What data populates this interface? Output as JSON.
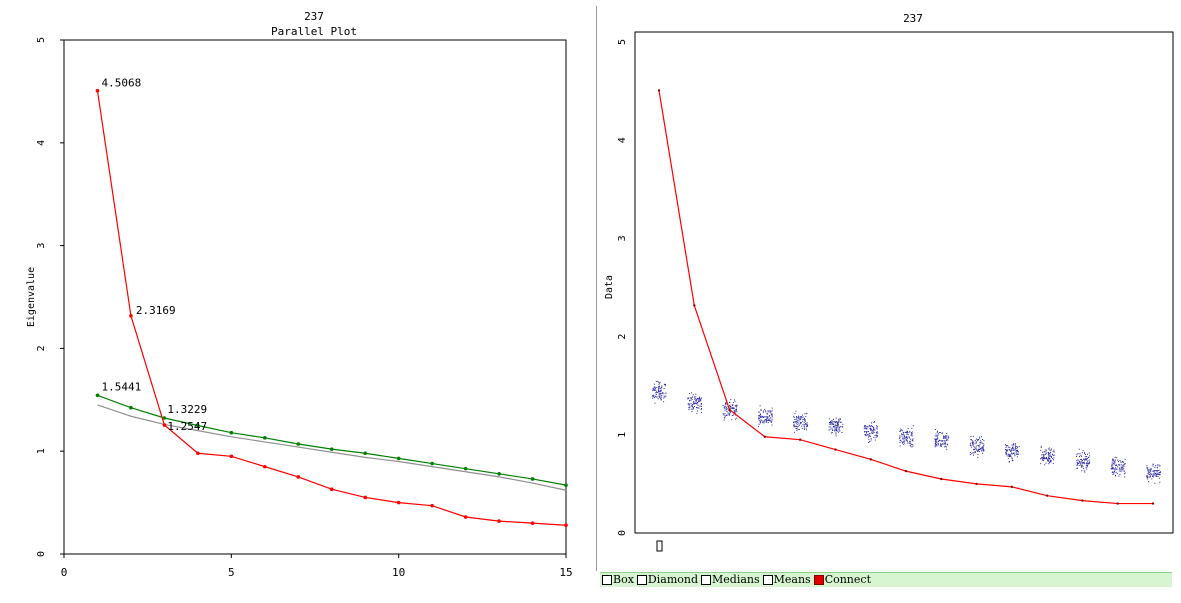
{
  "chart_data": [
    {
      "type": "line",
      "title": "237",
      "subtitle": "Parallel Plot",
      "xlabel": "",
      "ylabel": "Eigenvalue",
      "xlim": [
        0,
        15
      ],
      "ylim": [
        0,
        5
      ],
      "xticks": [
        0,
        5,
        10,
        15
      ],
      "yticks": [
        0,
        1,
        2,
        3,
        4,
        5
      ],
      "grid": false,
      "x": [
        1,
        2,
        3,
        4,
        5,
        6,
        7,
        8,
        9,
        10,
        11,
        12,
        13,
        14,
        15
      ],
      "series": [
        {
          "color": "#ff0000",
          "markers": true,
          "values": [
            4.5068,
            2.3169,
            1.2547,
            0.98,
            0.95,
            0.85,
            0.75,
            0.63,
            0.55,
            0.5,
            0.47,
            0.36,
            0.32,
            0.3,
            0.28
          ]
        },
        {
          "color": "#008000",
          "markers": true,
          "values": [
            1.5441,
            1.4229,
            1.3229,
            1.25,
            1.18,
            1.13,
            1.07,
            1.02,
            0.98,
            0.93,
            0.88,
            0.83,
            0.78,
            0.73,
            0.67
          ]
        },
        {
          "color": "#909090",
          "markers": false,
          "values": [
            1.45,
            1.34,
            1.26,
            1.2,
            1.14,
            1.09,
            1.04,
            0.99,
            0.94,
            0.9,
            0.85,
            0.8,
            0.75,
            0.69,
            0.62
          ]
        }
      ],
      "annotations": [
        {
          "x": 1,
          "y": 4.5068,
          "text": "4.5068"
        },
        {
          "x": 2,
          "y": 2.3169,
          "text": "2.3169"
        },
        {
          "x": 1,
          "y": 1.5441,
          "text": "1.5441"
        },
        {
          "x": 3,
          "y": 1.3229,
          "text": "1.3229"
        },
        {
          "x": 3,
          "y": 1.2547,
          "text": "1.2547"
        }
      ]
    },
    {
      "type": "scatter",
      "title": "237",
      "ylabel": "Data",
      "ylim": [
        0,
        5
      ],
      "yticks": [
        0,
        1,
        2,
        3,
        4,
        5
      ],
      "categories_count": 15,
      "scatter_centers": [
        1.45,
        1.34,
        1.26,
        1.2,
        1.14,
        1.09,
        1.04,
        0.98,
        0.94,
        0.89,
        0.84,
        0.79,
        0.74,
        0.68,
        0.62
      ],
      "scatter_color": "#2a2aa8",
      "connect_line": {
        "color": "#ff0000",
        "values": [
          4.5068,
          2.3169,
          1.2547,
          0.98,
          0.95,
          0.85,
          0.75,
          0.63,
          0.55,
          0.5,
          0.47,
          0.38,
          0.33,
          0.3,
          0.3
        ]
      }
    }
  ],
  "legend": {
    "options": [
      {
        "label": "Box",
        "checked": false
      },
      {
        "label": "Diamond",
        "checked": false
      },
      {
        "label": "Medians",
        "checked": false
      },
      {
        "label": "Means",
        "checked": false
      },
      {
        "label": "Connect",
        "checked": true
      }
    ]
  }
}
